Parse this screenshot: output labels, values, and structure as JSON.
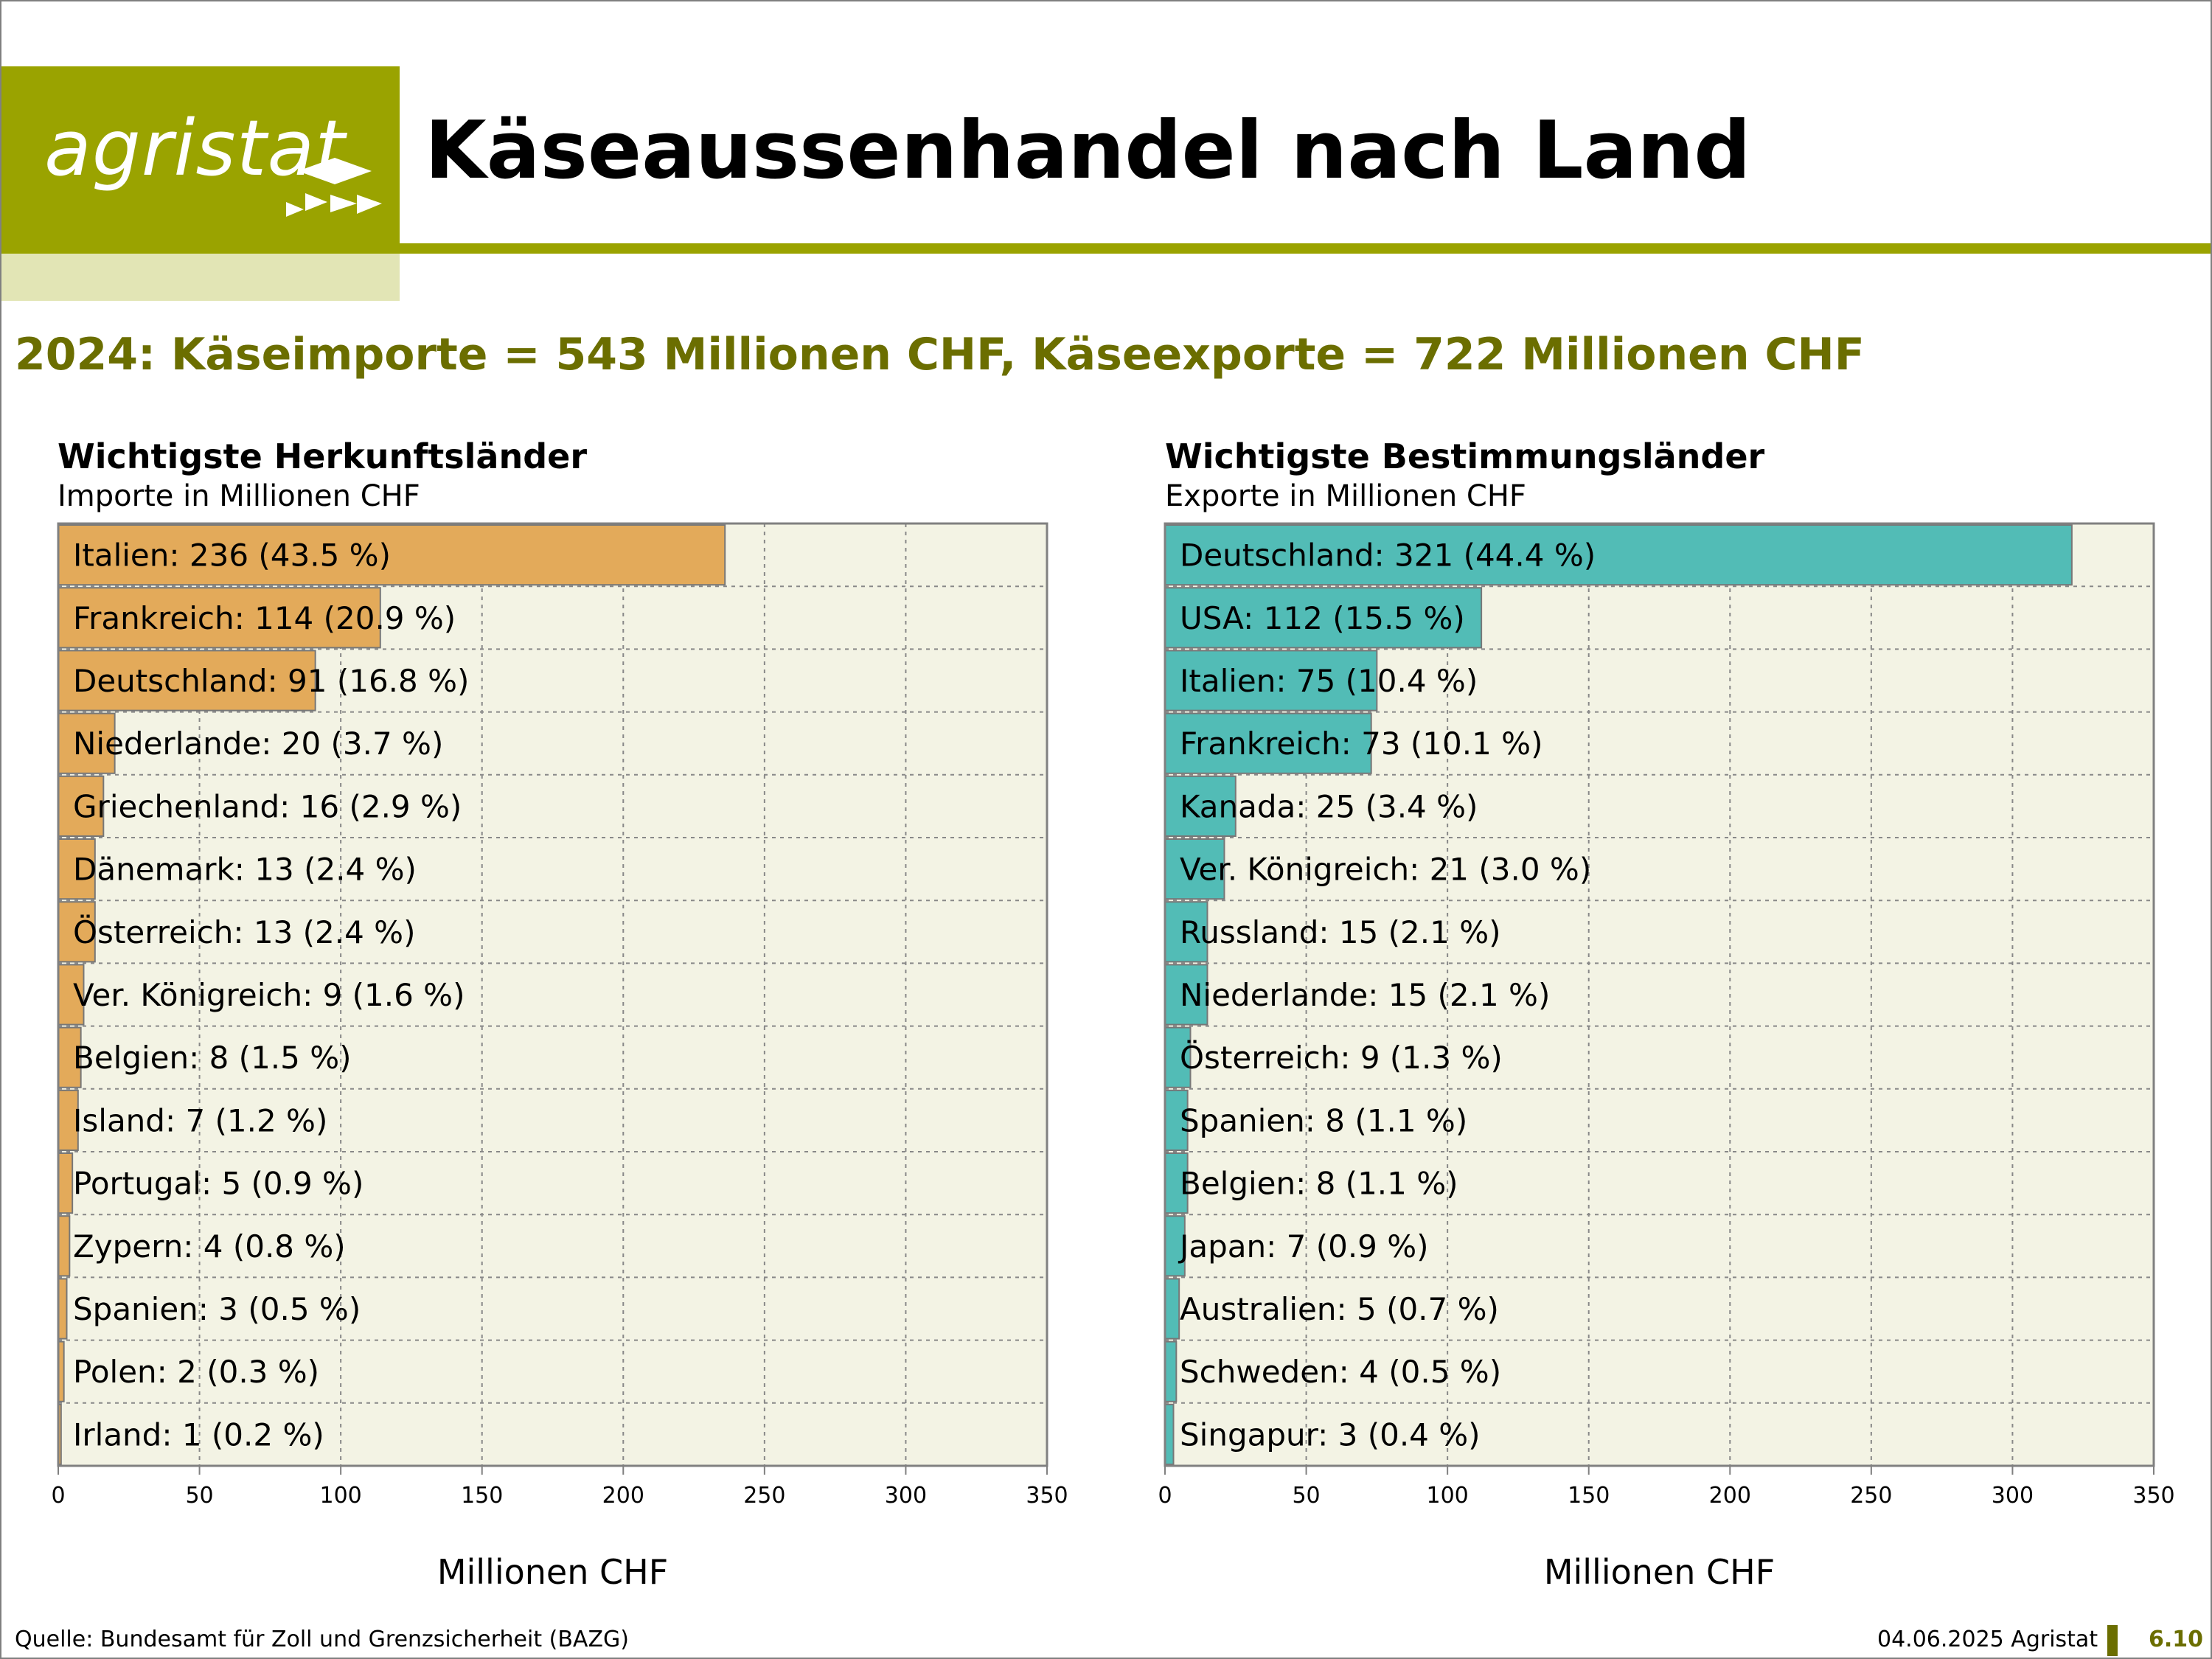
{
  "header": {
    "logo_text": "agristat",
    "title": "Käseaussenhandel nach Land",
    "subtitle": "2024: Käseimporte = 543 Millionen CHF, Käseexporte = 722 Millionen CHF"
  },
  "colors": {
    "brand": "#9aa300",
    "brand_dark": "#6b6e00",
    "import_bar": "#e3aa5a",
    "export_bar": "#52bcb6",
    "plot_bg": "#f3f3e4"
  },
  "chart_data": [
    {
      "type": "bar",
      "orientation": "horizontal",
      "title": "Wichtigste Herkunftsländer",
      "subtitle": "Importe in Millionen CHF",
      "xlabel": "Millionen CHF",
      "xlim": [
        0,
        350
      ],
      "xticks": [
        "0",
        "50",
        "100",
        "150",
        "200",
        "250",
        "300",
        "350"
      ],
      "grid": true,
      "color": "#e3aa5a",
      "categories": [
        "Italien",
        "Frankreich",
        "Deutschland",
        "Niederlande",
        "Griechenland",
        "Dänemark",
        "Österreich",
        "Ver. Königreich",
        "Belgien",
        "Island",
        "Portugal",
        "Zypern",
        "Spanien",
        "Polen",
        "Irland"
      ],
      "values": [
        236,
        114,
        91,
        20,
        16,
        13,
        13,
        9,
        8,
        7,
        5,
        4,
        3,
        2,
        1
      ],
      "labels": [
        "Italien: 236 (43.5 %)",
        "Frankreich: 114 (20.9 %)",
        "Deutschland: 91 (16.8 %)",
        "Niederlande: 20 (3.7 %)",
        "Griechenland: 16 (2.9 %)",
        "Dänemark: 13 (2.4 %)",
        "Österreich: 13 (2.4 %)",
        "Ver. Königreich: 9 (1.6 %)",
        "Belgien: 8 (1.5 %)",
        "Island: 7 (1.2 %)",
        "Portugal: 5 (0.9 %)",
        "Zypern: 4 (0.8 %)",
        "Spanien: 3 (0.5 %)",
        "Polen: 2 (0.3 %)",
        "Irland: 1 (0.2 %)"
      ]
    },
    {
      "type": "bar",
      "orientation": "horizontal",
      "title": "Wichtigste Bestimmungsländer",
      "subtitle": "Exporte in Millionen CHF",
      "xlabel": "Millionen CHF",
      "xlim": [
        0,
        350
      ],
      "xticks": [
        "0",
        "50",
        "100",
        "150",
        "200",
        "250",
        "300",
        "350"
      ],
      "grid": true,
      "color": "#52bcb6",
      "categories": [
        "Deutschland",
        "USA",
        "Italien",
        "Frankreich",
        "Kanada",
        "Ver. Königreich",
        "Russland",
        "Niederlande",
        "Österreich",
        "Spanien",
        "Belgien",
        "Japan",
        "Australien",
        "Schweden",
        "Singapur"
      ],
      "values": [
        321,
        112,
        75,
        73,
        25,
        21,
        15,
        15,
        9,
        8,
        8,
        7,
        5,
        4,
        3
      ],
      "labels": [
        "Deutschland: 321 (44.4 %)",
        "USA: 112 (15.5 %)",
        "Italien: 75 (10.4 %)",
        "Frankreich: 73 (10.1 %)",
        "Kanada: 25 (3.4 %)",
        "Ver. Königreich: 21 (3.0 %)",
        "Russland: 15 (2.1 %)",
        "Niederlande: 15 (2.1 %)",
        "Österreich: 9 (1.3 %)",
        "Spanien: 8 (1.1 %)",
        "Belgien: 8 (1.1 %)",
        "Japan: 7 (0.9 %)",
        "Australien: 5 (0.7 %)",
        "Schweden: 4 (0.5 %)",
        "Singapur: 3 (0.4 %)"
      ]
    }
  ],
  "footer": {
    "source": "Quelle: Bundesamt für Zoll und Grenzsicherheit (BAZG)",
    "date": "04.06.2025 Agristat",
    "page": "6.10"
  }
}
